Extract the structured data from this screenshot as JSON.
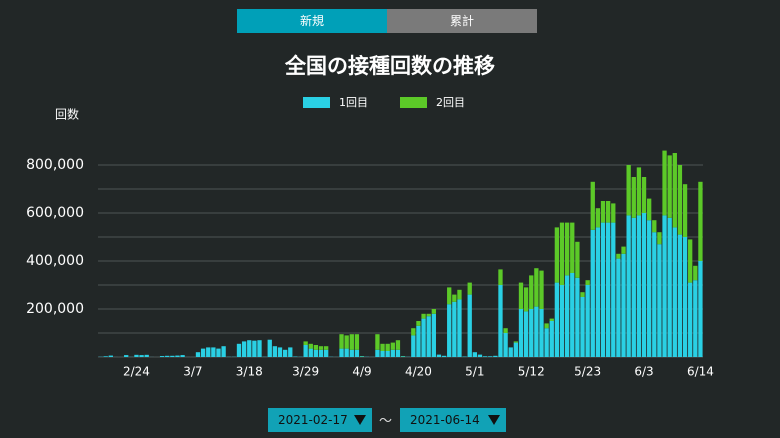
{
  "tabs": [
    "新規",
    "累計"
  ],
  "chart_data": {
    "type": "bar",
    "stacked": true,
    "title": "全国の接種回数の推移",
    "y_label": "回数",
    "legend": "top",
    "categories": [
      null,
      null,
      null,
      null,
      null,
      null,
      null,
      "2/24",
      null,
      null,
      null,
      null,
      null,
      null,
      null,
      null,
      null,
      null,
      "3/7",
      null,
      null,
      null,
      null,
      null,
      null,
      null,
      null,
      null,
      null,
      "3/18",
      null,
      null,
      null,
      null,
      null,
      null,
      null,
      null,
      null,
      null,
      "3/29",
      null,
      null,
      null,
      null,
      null,
      null,
      null,
      null,
      null,
      null,
      "4/9",
      null,
      null,
      null,
      null,
      null,
      null,
      null,
      null,
      null,
      null,
      "4/20",
      null,
      null,
      null,
      null,
      null,
      null,
      null,
      null,
      null,
      null,
      "5/1",
      null,
      null,
      null,
      null,
      null,
      null,
      null,
      null,
      null,
      null,
      "5/12",
      null,
      null,
      null,
      null,
      null,
      null,
      null,
      null,
      null,
      null,
      "5/23",
      null,
      null,
      null,
      null,
      null,
      null,
      null,
      null,
      null,
      null,
      "6/3",
      null,
      null,
      null,
      null,
      null,
      null,
      null,
      null,
      null,
      null,
      "6/14"
    ],
    "series": [
      {
        "name": "1回目",
        "color": "#2ad0e4",
        "values": [
          1000,
          3000,
          6000,
          200,
          100,
          8000,
          500,
          9000,
          8000,
          9000,
          300,
          100,
          4000,
          5000,
          5000,
          6000,
          8000,
          300,
          200,
          20000,
          35000,
          40000,
          40000,
          35000,
          45000,
          1000,
          1000,
          55000,
          65000,
          70000,
          68000,
          70000,
          1000,
          72000,
          45000,
          40000,
          30000,
          40000,
          2000,
          1000,
          50000,
          35000,
          30000,
          30000,
          30000,
          1000,
          500,
          35000,
          35000,
          30000,
          30000,
          3000,
          1000,
          500,
          30000,
          25000,
          25000,
          30000,
          30000,
          3000,
          1000,
          90000,
          130000,
          160000,
          170000,
          180000,
          10000,
          5000,
          220000,
          230000,
          240000,
          2000,
          260000,
          20000,
          10000,
          3000,
          3000,
          5000,
          300000,
          100000,
          40000,
          60000,
          200000,
          190000,
          200000,
          210000,
          200000,
          120000,
          150000,
          310000,
          300000,
          340000,
          350000,
          330000,
          250000,
          300000,
          530000,
          540000,
          560000,
          560000,
          560000,
          410000,
          430000,
          590000,
          580000,
          590000,
          600000,
          570000,
          520000,
          470000,
          590000,
          580000,
          540000,
          510000,
          500000,
          310000,
          320000,
          400000
        ]
      },
      {
        "name": "2回目",
        "color": "#5cc928",
        "values": [
          0,
          0,
          0,
          0,
          0,
          0,
          0,
          0,
          0,
          0,
          0,
          0,
          0,
          0,
          0,
          0,
          0,
          0,
          0,
          0,
          0,
          0,
          0,
          0,
          0,
          0,
          0,
          0,
          0,
          0,
          0,
          0,
          0,
          0,
          0,
          0,
          0,
          0,
          0,
          0,
          15000,
          20000,
          20000,
          15000,
          15000,
          0,
          0,
          60000,
          55000,
          65000,
          65000,
          1000,
          0,
          0,
          65000,
          30000,
          30000,
          30000,
          40000,
          1000,
          0,
          30000,
          20000,
          20000,
          10000,
          20000,
          0,
          0,
          70000,
          30000,
          40000,
          0,
          50000,
          0,
          0,
          0,
          0,
          0,
          65000,
          20000,
          0,
          5000,
          110000,
          100000,
          140000,
          160000,
          160000,
          20000,
          10000,
          230000,
          260000,
          220000,
          210000,
          150000,
          20000,
          20000,
          200000,
          80000,
          90000,
          90000,
          80000,
          20000,
          30000,
          210000,
          170000,
          200000,
          150000,
          90000,
          50000,
          50000,
          270000,
          260000,
          310000,
          290000,
          220000,
          180000,
          60000,
          330000
        ]
      }
    ],
    "ylim": [
      0,
      900000
    ],
    "yticks": [
      {
        "value": 200000,
        "label": "200,000"
      },
      {
        "value": 400000,
        "label": "400,000"
      },
      {
        "value": 600000,
        "label": "600,000"
      },
      {
        "value": 800000,
        "label": "800,000"
      }
    ],
    "gridlines": [
      100000,
      200000,
      300000,
      400000,
      500000,
      600000,
      700000,
      800000
    ],
    "grid": true
  },
  "date_range": {
    "start": "2021-02-17",
    "separator": "～",
    "end": "2021-06-14"
  }
}
